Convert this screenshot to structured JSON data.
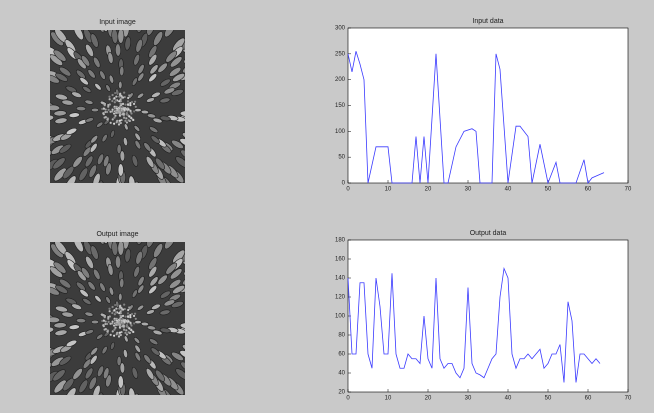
{
  "chart_data": [
    {
      "type": "image",
      "title": "Input image"
    },
    {
      "type": "line",
      "title": "Input data",
      "x": [
        0,
        1,
        2,
        3,
        4,
        5,
        7,
        10,
        11,
        16,
        17,
        18,
        19,
        20,
        22,
        24,
        25,
        27,
        29,
        31,
        32,
        33,
        36,
        37,
        38,
        40,
        42,
        43,
        45,
        46,
        48,
        50,
        52,
        53,
        57,
        59,
        60,
        61,
        64
      ],
      "values": [
        250,
        215,
        255,
        230,
        200,
        0,
        70,
        70,
        0,
        0,
        90,
        0,
        90,
        0,
        250,
        0,
        0,
        70,
        100,
        105,
        100,
        0,
        0,
        250,
        220,
        0,
        110,
        110,
        90,
        0,
        75,
        0,
        40,
        0,
        0,
        45,
        0,
        10,
        20
      ],
      "color": "#3a3aff",
      "xlim": [
        0,
        70
      ],
      "xticks": [
        0,
        10,
        20,
        30,
        40,
        50,
        60,
        70
      ],
      "ylim": [
        0,
        300
      ],
      "yticks": [
        0,
        50,
        100,
        150,
        200,
        250,
        300
      ]
    },
    {
      "type": "image",
      "title": "Output image"
    },
    {
      "type": "line",
      "title": "Output data",
      "x": [
        0,
        1,
        2,
        3,
        4,
        5,
        6,
        7,
        8,
        9,
        10,
        11,
        12,
        13,
        14,
        15,
        16,
        17,
        18,
        19,
        20,
        21,
        22,
        23,
        24,
        25,
        26,
        27,
        28,
        29,
        30,
        31,
        32,
        33,
        34,
        35,
        36,
        37,
        38,
        39,
        40,
        41,
        42,
        43,
        44,
        45,
        46,
        47,
        48,
        49,
        50,
        51,
        52,
        53,
        54,
        55,
        56,
        57,
        58,
        59,
        60,
        61,
        62,
        63
      ],
      "values": [
        140,
        60,
        60,
        135,
        135,
        60,
        45,
        140,
        110,
        60,
        60,
        145,
        60,
        45,
        45,
        60,
        55,
        55,
        50,
        100,
        55,
        45,
        140,
        55,
        45,
        50,
        50,
        40,
        35,
        45,
        130,
        50,
        40,
        38,
        35,
        45,
        55,
        60,
        120,
        150,
        140,
        60,
        45,
        55,
        55,
        60,
        55,
        60,
        65,
        45,
        50,
        60,
        60,
        70,
        30,
        115,
        95,
        30,
        60,
        60,
        55,
        50,
        55,
        50
      ],
      "color": "#3a3aff",
      "xlim": [
        0,
        70
      ],
      "xticks": [
        0,
        10,
        20,
        30,
        40,
        50,
        60,
        70
      ],
      "ylim": [
        20,
        180
      ],
      "yticks": [
        20,
        40,
        60,
        80,
        100,
        120,
        140,
        160,
        180
      ]
    }
  ]
}
